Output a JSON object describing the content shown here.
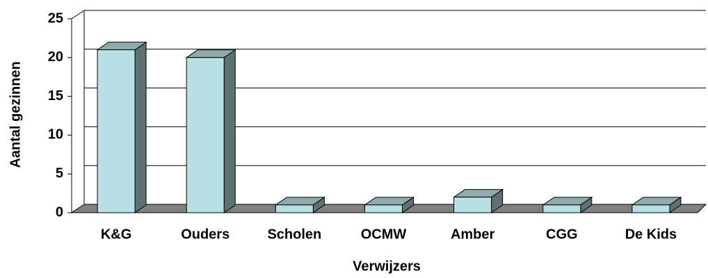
{
  "chart_data": {
    "type": "bar",
    "categories": [
      "K&G",
      "Ouders",
      "Scholen",
      "OCMW",
      "Amber",
      "CGG",
      "De Kids"
    ],
    "values": [
      21,
      20,
      1,
      1,
      2,
      1,
      1
    ],
    "color": "#b9e0e4",
    "ylim": [
      0,
      25
    ],
    "yticks": [
      0,
      5,
      10,
      15,
      20,
      25
    ],
    "grid": true,
    "xlabel": "Verwijzers",
    "ylabel": "Aantal gezinnen"
  }
}
